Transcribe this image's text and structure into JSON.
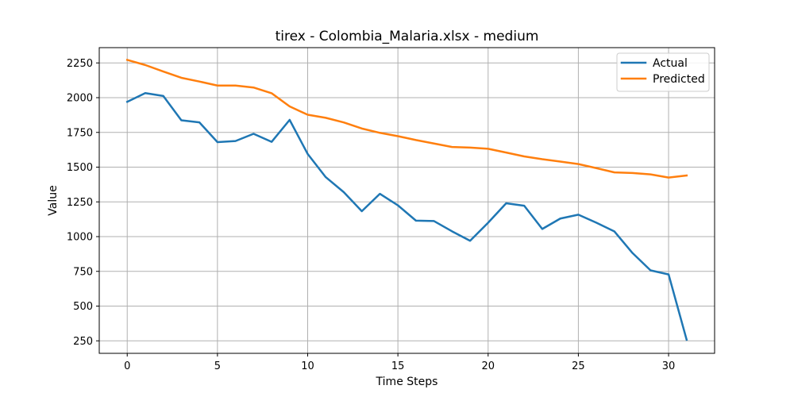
{
  "chart_data": {
    "type": "line",
    "title": "tirex - Colombia_Malaria.xlsx - medium",
    "xlabel": "Time Steps",
    "ylabel": "Value",
    "xlim": [
      -1.55,
      32.55
    ],
    "ylim": [
      160,
      2360
    ],
    "xticks": [
      0,
      5,
      10,
      15,
      20,
      25,
      30
    ],
    "yticks": [
      250,
      500,
      750,
      1000,
      1250,
      1500,
      1750,
      2000,
      2250
    ],
    "grid": true,
    "legend_position": "top-right",
    "x": [
      0,
      1,
      2,
      3,
      4,
      5,
      6,
      7,
      8,
      9,
      10,
      11,
      12,
      13,
      14,
      15,
      16,
      17,
      18,
      19,
      20,
      21,
      22,
      23,
      24,
      25,
      26,
      27,
      28,
      29,
      30,
      31
    ],
    "series": [
      {
        "name": "Actual",
        "color": "#1f77b4",
        "values": [
          1970,
          2033,
          2012,
          1837,
          1822,
          1680,
          1688,
          1740,
          1682,
          1840,
          1595,
          1428,
          1320,
          1183,
          1308,
          1225,
          1115,
          1112,
          1038,
          970,
          1100,
          1240,
          1222,
          1055,
          1130,
          1158,
          1100,
          1037,
          882,
          757,
          728,
          258
        ]
      },
      {
        "name": "Predicted",
        "color": "#ff7f0e",
        "values": [
          2272,
          2235,
          2188,
          2143,
          2116,
          2087,
          2087,
          2073,
          2032,
          1937,
          1877,
          1855,
          1822,
          1778,
          1747,
          1723,
          1695,
          1670,
          1645,
          1641,
          1632,
          1605,
          1577,
          1557,
          1540,
          1522,
          1493,
          1462,
          1458,
          1448,
          1425,
          1440
        ]
      }
    ]
  }
}
